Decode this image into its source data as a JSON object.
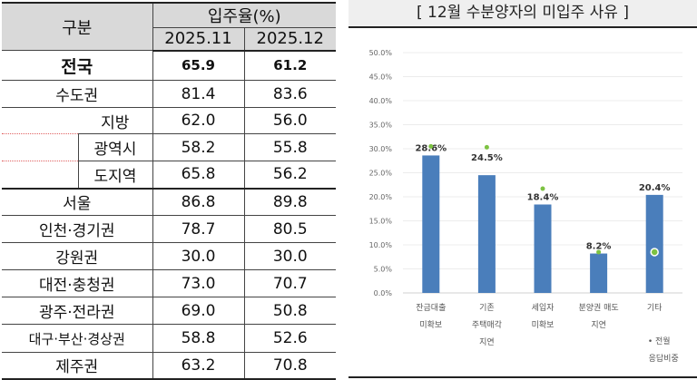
{
  "table": {
    "header_category": "구분",
    "header_group": "입주율(%)",
    "periods": [
      "2025.11",
      "2025.12"
    ],
    "rows": [
      {
        "label": "전국",
        "v1": "65.9",
        "v2": "61.2",
        "level": "total"
      },
      {
        "label": "수도권",
        "v1": "81.4",
        "v2": "83.6",
        "level": "main"
      },
      {
        "label": "지방",
        "v1": "62.0",
        "v2": "56.0",
        "level": "sub"
      },
      {
        "label": "광역시",
        "v1": "58.2",
        "v2": "55.8",
        "level": "sub"
      },
      {
        "label": "도지역",
        "v1": "65.8",
        "v2": "56.2",
        "level": "sub"
      },
      {
        "label": "서울",
        "v1": "86.8",
        "v2": "89.8",
        "level": "main"
      },
      {
        "label": "인천·경기권",
        "v1": "78.7",
        "v2": "80.5",
        "level": "main"
      },
      {
        "label": "강원권",
        "v1": "30.0",
        "v2": "30.0",
        "level": "main"
      },
      {
        "label": "대전·충청권",
        "v1": "73.0",
        "v2": "70.7",
        "level": "main"
      },
      {
        "label": "광주·전라권",
        "v1": "69.0",
        "v2": "50.8",
        "level": "main"
      },
      {
        "label": "대구·부산·경상권",
        "v1": "58.8",
        "v2": "52.6",
        "level": "main"
      },
      {
        "label": "제주권",
        "v1": "63.2",
        "v2": "70.8",
        "level": "main"
      }
    ]
  },
  "chart_data": {
    "type": "bar",
    "title": "[ 12월  수분양자의  미입주  사유 ]",
    "categories": [
      [
        "잔금대출",
        "미확보"
      ],
      [
        "기존",
        "주택매각",
        "지연"
      ],
      [
        "세입자",
        "미확보"
      ],
      [
        "분양권 매도",
        "지연"
      ],
      [
        "기타"
      ]
    ],
    "series": [
      {
        "name": "12월",
        "type": "bar",
        "values": [
          28.6,
          24.5,
          18.4,
          8.2,
          20.4
        ],
        "labels": [
          "28.6%",
          "24.5%",
          "18.4%",
          "8.2%",
          "20.4%"
        ],
        "color": "#4a7ebb"
      },
      {
        "name": "전월 응답비중",
        "type": "scatter",
        "values": [
          30.5,
          30.3,
          21.7,
          8.5,
          8.5
        ],
        "color": "#7dc242"
      }
    ],
    "legend_label": [
      "• 전월",
      "응답비중"
    ],
    "ylim": [
      0,
      50
    ],
    "yticks": [
      "0.0%",
      "5.0%",
      "10.0%",
      "15.0%",
      "20.0%",
      "25.0%",
      "30.0%",
      "35.0%",
      "40.0%",
      "45.0%",
      "50.0%"
    ],
    "grid": true,
    "legend": "bottom-right"
  }
}
